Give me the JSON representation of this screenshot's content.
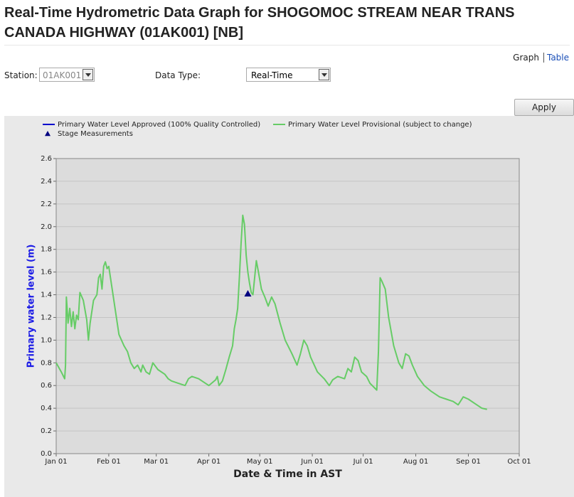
{
  "header": {
    "title": "Real-Time Hydrometric Data Graph for SHOGOMOC STREAM NEAR TRANS CANADA HIGHWAY (01AK001) [NB]"
  },
  "nav": {
    "items": [
      "Graph",
      "Table"
    ]
  },
  "form": {
    "station_label": "Station:",
    "station_value": "01AK001",
    "data_type_label": "Data Type:",
    "data_type_value": "Real-Time",
    "apply": "Apply"
  },
  "chart_data": {
    "type": "line",
    "x_label": "Date & Time in AST",
    "y_label": "Primary water level (m)",
    "xlim": [
      0,
      273
    ],
    "xticks": [
      {
        "value": 0,
        "label": "Jan 01"
      },
      {
        "value": 31,
        "label": "Feb 01"
      },
      {
        "value": 59,
        "label": "Mar 01"
      },
      {
        "value": 90,
        "label": "Apr 01"
      },
      {
        "value": 120,
        "label": "May 01"
      },
      {
        "value": 151,
        "label": "Jun 01"
      },
      {
        "value": 181,
        "label": "Jul 01"
      },
      {
        "value": 212,
        "label": "Aug 01"
      },
      {
        "value": 243,
        "label": "Sep 01"
      },
      {
        "value": 273,
        "label": "Oct 01"
      }
    ],
    "ylim": [
      0,
      2.6
    ],
    "yticks": [
      {
        "value": 0,
        "label": "0.0"
      },
      0.2,
      0.4,
      0.6,
      0.8,
      {
        "value": 1,
        "label": "1.0"
      },
      1.2,
      1.4,
      1.6,
      1.8,
      {
        "value": 2,
        "label": "2.0"
      },
      2.2,
      2.4,
      2.6
    ],
    "grid": true,
    "series": [
      {
        "name": "Primary Water Level Approved (100% Quality Controlled)",
        "color": "#0000cc",
        "x": [],
        "values": []
      },
      {
        "name": "Primary Water Level Provisional (subject to change)",
        "color": "#66cc66",
        "x": [
          0,
          3,
          5,
          5.5,
          6,
          7,
          8,
          9,
          10,
          11,
          12,
          13,
          14,
          16,
          18,
          19,
          20,
          22,
          24,
          25,
          26,
          27,
          28,
          29,
          30,
          31,
          33,
          35,
          37,
          40,
          42,
          44,
          46,
          48,
          50,
          51,
          53,
          55,
          57,
          60,
          64,
          66,
          68,
          72,
          76,
          78,
          80,
          84,
          88,
          90,
          94,
          95,
          96,
          98,
          100,
          102,
          104,
          105,
          106,
          107,
          108,
          109,
          110,
          111,
          112,
          113,
          114,
          115,
          116,
          117,
          118,
          119,
          121,
          123,
          125,
          127,
          129,
          132,
          135,
          139,
          142,
          144,
          146,
          148,
          150,
          154,
          158,
          161,
          163,
          166,
          170,
          172,
          174,
          176,
          178,
          180,
          183,
          185,
          189,
          190,
          191,
          192,
          194,
          196,
          199,
          202,
          204,
          206,
          208,
          210,
          213,
          217,
          221,
          226,
          230,
          234,
          237,
          240,
          243,
          247,
          251,
          254
        ],
        "values": [
          0.8,
          0.72,
          0.66,
          0.78,
          1.38,
          1.15,
          1.28,
          1.12,
          1.25,
          1.1,
          1.22,
          1.18,
          1.42,
          1.35,
          1.18,
          1.0,
          1.15,
          1.35,
          1.4,
          1.55,
          1.58,
          1.45,
          1.65,
          1.69,
          1.63,
          1.65,
          1.45,
          1.25,
          1.05,
          0.95,
          0.9,
          0.8,
          0.75,
          0.78,
          0.72,
          0.78,
          0.72,
          0.7,
          0.8,
          0.74,
          0.7,
          0.66,
          0.64,
          0.62,
          0.6,
          0.66,
          0.68,
          0.66,
          0.62,
          0.6,
          0.65,
          0.68,
          0.6,
          0.64,
          0.74,
          0.85,
          0.95,
          1.1,
          1.18,
          1.28,
          1.55,
          1.85,
          2.1,
          2.02,
          1.75,
          1.6,
          1.5,
          1.42,
          1.4,
          1.55,
          1.7,
          1.62,
          1.45,
          1.38,
          1.3,
          1.38,
          1.32,
          1.15,
          1.0,
          0.88,
          0.78,
          0.88,
          1.0,
          0.95,
          0.85,
          0.72,
          0.66,
          0.6,
          0.65,
          0.68,
          0.66,
          0.75,
          0.72,
          0.85,
          0.82,
          0.72,
          0.68,
          0.62,
          0.56,
          0.9,
          1.55,
          1.52,
          1.45,
          1.2,
          0.95,
          0.8,
          0.75,
          0.88,
          0.86,
          0.78,
          0.68,
          0.6,
          0.55,
          0.5,
          0.48,
          0.46,
          0.43,
          0.5,
          0.48,
          0.44,
          0.4,
          0.39
        ]
      },
      {
        "name": "Stage Measurements",
        "color": "#000080",
        "marker": "triangle",
        "x": [
          113
        ],
        "values": [
          1.41
        ]
      }
    ]
  }
}
